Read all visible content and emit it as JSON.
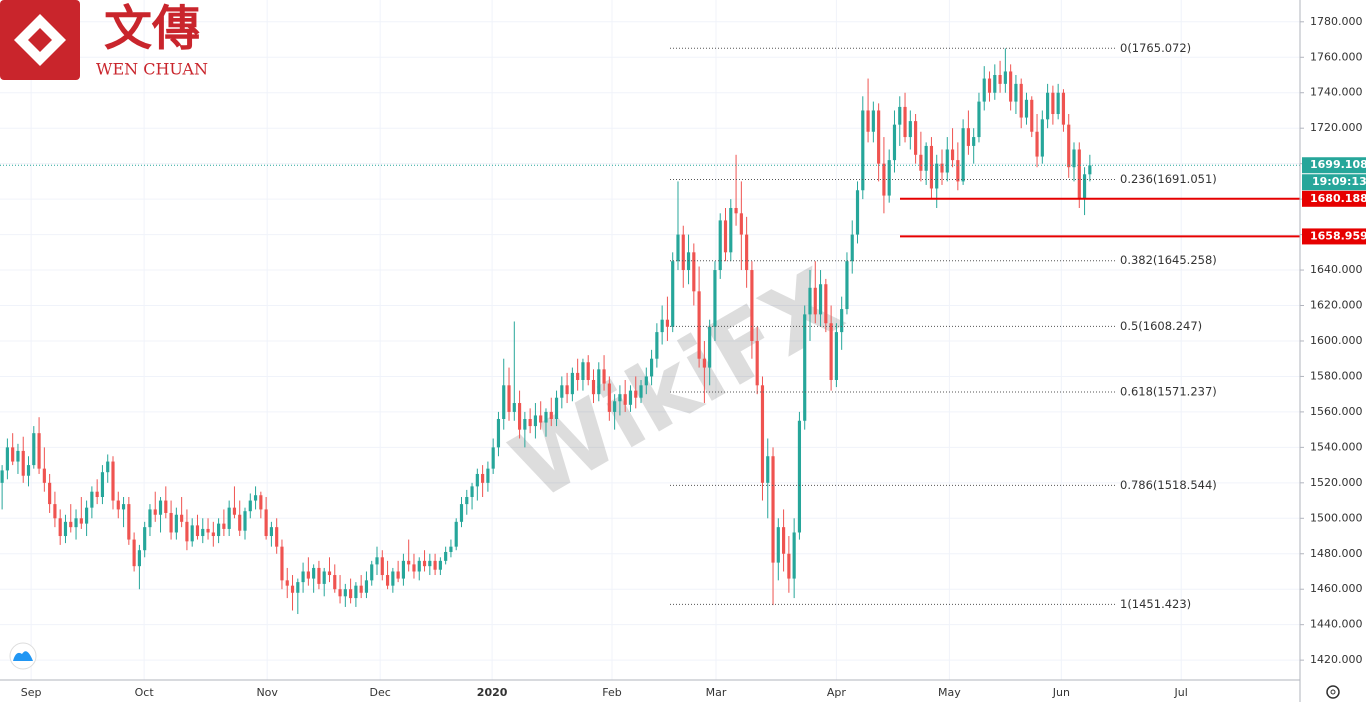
{
  "logo": {
    "name_cn": "文傳",
    "name_en": "WEN CHUAN"
  },
  "watermark": "WikiFX",
  "chart_data": {
    "type": "candlestick",
    "up_color": "#26a69a",
    "down_color": "#ef5350",
    "grid": true,
    "candles": [
      [
        1520,
        1530,
        1505,
        1527
      ],
      [
        1527,
        1545,
        1522,
        1540
      ],
      [
        1540,
        1548,
        1530,
        1532
      ],
      [
        1532,
        1542,
        1525,
        1538
      ],
      [
        1538,
        1546,
        1520,
        1524
      ],
      [
        1524,
        1535,
        1518,
        1530
      ],
      [
        1530,
        1552,
        1528,
        1548
      ],
      [
        1548,
        1557,
        1525,
        1528
      ],
      [
        1528,
        1540,
        1515,
        1520
      ],
      [
        1520,
        1525,
        1503,
        1508
      ],
      [
        1508,
        1515,
        1495,
        1500
      ],
      [
        1500,
        1505,
        1485,
        1490
      ],
      [
        1490,
        1502,
        1486,
        1498
      ],
      [
        1498,
        1508,
        1492,
        1495
      ],
      [
        1495,
        1505,
        1488,
        1500
      ],
      [
        1500,
        1512,
        1494,
        1497
      ],
      [
        1497,
        1510,
        1490,
        1506
      ],
      [
        1506,
        1518,
        1500,
        1515
      ],
      [
        1515,
        1522,
        1508,
        1512
      ],
      [
        1512,
        1530,
        1508,
        1526
      ],
      [
        1526,
        1536,
        1520,
        1532
      ],
      [
        1532,
        1535,
        1505,
        1510
      ],
      [
        1510,
        1515,
        1500,
        1505
      ],
      [
        1505,
        1512,
        1495,
        1508
      ],
      [
        1508,
        1512,
        1485,
        1488
      ],
      [
        1488,
        1492,
        1470,
        1473
      ],
      [
        1473,
        1485,
        1460,
        1482
      ],
      [
        1482,
        1498,
        1478,
        1495
      ],
      [
        1495,
        1508,
        1490,
        1505
      ],
      [
        1505,
        1515,
        1498,
        1502
      ],
      [
        1502,
        1512,
        1492,
        1510
      ],
      [
        1510,
        1518,
        1500,
        1503
      ],
      [
        1503,
        1510,
        1488,
        1492
      ],
      [
        1492,
        1506,
        1488,
        1502
      ],
      [
        1502,
        1512,
        1495,
        1498
      ],
      [
        1498,
        1505,
        1482,
        1487
      ],
      [
        1487,
        1500,
        1484,
        1496
      ],
      [
        1496,
        1502,
        1488,
        1490
      ],
      [
        1490,
        1500,
        1486,
        1494
      ],
      [
        1494,
        1500,
        1488,
        1492
      ],
      [
        1492,
        1498,
        1484,
        1490
      ],
      [
        1490,
        1500,
        1486,
        1497
      ],
      [
        1497,
        1505,
        1490,
        1494
      ],
      [
        1494,
        1510,
        1490,
        1506
      ],
      [
        1506,
        1518,
        1500,
        1502
      ],
      [
        1502,
        1510,
        1490,
        1493
      ],
      [
        1493,
        1506,
        1488,
        1504
      ],
      [
        1504,
        1514,
        1500,
        1510
      ],
      [
        1510,
        1518,
        1505,
        1513
      ],
      [
        1513,
        1515,
        1500,
        1505
      ],
      [
        1505,
        1512,
        1488,
        1490
      ],
      [
        1490,
        1498,
        1484,
        1495
      ],
      [
        1495,
        1500,
        1480,
        1484
      ],
      [
        1484,
        1488,
        1460,
        1465
      ],
      [
        1465,
        1472,
        1455,
        1462
      ],
      [
        1462,
        1468,
        1448,
        1458
      ],
      [
        1458,
        1466,
        1446,
        1464
      ],
      [
        1464,
        1475,
        1458,
        1470
      ],
      [
        1470,
        1478,
        1462,
        1466
      ],
      [
        1466,
        1474,
        1458,
        1472
      ],
      [
        1472,
        1476,
        1460,
        1463
      ],
      [
        1463,
        1472,
        1456,
        1470
      ],
      [
        1470,
        1478,
        1464,
        1468
      ],
      [
        1468,
        1474,
        1458,
        1460
      ],
      [
        1460,
        1468,
        1452,
        1456
      ],
      [
        1456,
        1463,
        1450,
        1460
      ],
      [
        1460,
        1466,
        1452,
        1455
      ],
      [
        1455,
        1464,
        1450,
        1462
      ],
      [
        1462,
        1468,
        1455,
        1458
      ],
      [
        1458,
        1470,
        1455,
        1465
      ],
      [
        1465,
        1476,
        1462,
        1474
      ],
      [
        1474,
        1484,
        1468,
        1478
      ],
      [
        1478,
        1482,
        1465,
        1468
      ],
      [
        1468,
        1476,
        1460,
        1462
      ],
      [
        1462,
        1472,
        1458,
        1470
      ],
      [
        1470,
        1476,
        1464,
        1466
      ],
      [
        1466,
        1480,
        1462,
        1476
      ],
      [
        1476,
        1488,
        1470,
        1474
      ],
      [
        1474,
        1480,
        1466,
        1470
      ],
      [
        1470,
        1478,
        1465,
        1476
      ],
      [
        1476,
        1482,
        1470,
        1473
      ],
      [
        1473,
        1480,
        1468,
        1476
      ],
      [
        1476,
        1480,
        1468,
        1471
      ],
      [
        1471,
        1478,
        1468,
        1476
      ],
      [
        1476,
        1484,
        1474,
        1481
      ],
      [
        1481,
        1488,
        1478,
        1484
      ],
      [
        1484,
        1500,
        1482,
        1498
      ],
      [
        1498,
        1512,
        1495,
        1508
      ],
      [
        1508,
        1516,
        1502,
        1512
      ],
      [
        1512,
        1520,
        1505,
        1518
      ],
      [
        1518,
        1528,
        1510,
        1525
      ],
      [
        1525,
        1530,
        1512,
        1520
      ],
      [
        1520,
        1532,
        1515,
        1528
      ],
      [
        1528,
        1545,
        1525,
        1540
      ],
      [
        1540,
        1560,
        1535,
        1556
      ],
      [
        1556,
        1590,
        1550,
        1575
      ],
      [
        1575,
        1585,
        1555,
        1560
      ],
      [
        1560,
        1611,
        1555,
        1565
      ],
      [
        1565,
        1572,
        1545,
        1550
      ],
      [
        1550,
        1560,
        1540,
        1556
      ],
      [
        1556,
        1562,
        1548,
        1552
      ],
      [
        1552,
        1565,
        1545,
        1558
      ],
      [
        1558,
        1566,
        1550,
        1554
      ],
      [
        1554,
        1562,
        1546,
        1560
      ],
      [
        1560,
        1568,
        1552,
        1556
      ],
      [
        1556,
        1572,
        1552,
        1568
      ],
      [
        1568,
        1580,
        1562,
        1575
      ],
      [
        1575,
        1582,
        1565,
        1570
      ],
      [
        1570,
        1585,
        1566,
        1582
      ],
      [
        1582,
        1590,
        1572,
        1578
      ],
      [
        1578,
        1590,
        1572,
        1588
      ],
      [
        1588,
        1592,
        1575,
        1578
      ],
      [
        1578,
        1584,
        1565,
        1570
      ],
      [
        1570,
        1588,
        1566,
        1584
      ],
      [
        1584,
        1592,
        1572,
        1576
      ],
      [
        1576,
        1580,
        1555,
        1560
      ],
      [
        1560,
        1570,
        1550,
        1566
      ],
      [
        1566,
        1575,
        1558,
        1570
      ],
      [
        1570,
        1578,
        1560,
        1564
      ],
      [
        1564,
        1575,
        1560,
        1572
      ],
      [
        1572,
        1580,
        1562,
        1568
      ],
      [
        1568,
        1578,
        1565,
        1575
      ],
      [
        1575,
        1585,
        1570,
        1580
      ],
      [
        1580,
        1595,
        1575,
        1590
      ],
      [
        1590,
        1610,
        1585,
        1605
      ],
      [
        1605,
        1620,
        1598,
        1612
      ],
      [
        1612,
        1625,
        1600,
        1608
      ],
      [
        1608,
        1650,
        1605,
        1645
      ],
      [
        1645,
        1690,
        1640,
        1660
      ],
      [
        1660,
        1665,
        1630,
        1640
      ],
      [
        1640,
        1660,
        1632,
        1650
      ],
      [
        1650,
        1655,
        1620,
        1628
      ],
      [
        1628,
        1642,
        1585,
        1590
      ],
      [
        1590,
        1600,
        1565,
        1585
      ],
      [
        1585,
        1612,
        1575,
        1608
      ],
      [
        1608,
        1645,
        1600,
        1640
      ],
      [
        1640,
        1672,
        1635,
        1668
      ],
      [
        1668,
        1675,
        1645,
        1650
      ],
      [
        1650,
        1680,
        1645,
        1675
      ],
      [
        1675,
        1705,
        1665,
        1672
      ],
      [
        1672,
        1690,
        1640,
        1660
      ],
      [
        1660,
        1670,
        1630,
        1640
      ],
      [
        1640,
        1645,
        1590,
        1600
      ],
      [
        1600,
        1608,
        1570,
        1575
      ],
      [
        1575,
        1580,
        1510,
        1520
      ],
      [
        1520,
        1545,
        1500,
        1535
      ],
      [
        1535,
        1540,
        1451,
        1475
      ],
      [
        1475,
        1500,
        1465,
        1495
      ],
      [
        1495,
        1505,
        1470,
        1480
      ],
      [
        1480,
        1490,
        1458,
        1466
      ],
      [
        1466,
        1500,
        1455,
        1492
      ],
      [
        1492,
        1560,
        1488,
        1555
      ],
      [
        1555,
        1620,
        1550,
        1615
      ],
      [
        1615,
        1640,
        1600,
        1630
      ],
      [
        1630,
        1645,
        1610,
        1615
      ],
      [
        1615,
        1640,
        1608,
        1632
      ],
      [
        1632,
        1635,
        1605,
        1610
      ],
      [
        1610,
        1620,
        1572,
        1578
      ],
      [
        1578,
        1610,
        1574,
        1605
      ],
      [
        1605,
        1625,
        1595,
        1618
      ],
      [
        1618,
        1650,
        1615,
        1645
      ],
      [
        1645,
        1668,
        1638,
        1660
      ],
      [
        1660,
        1690,
        1655,
        1685
      ],
      [
        1685,
        1738,
        1680,
        1730
      ],
      [
        1730,
        1748,
        1712,
        1718
      ],
      [
        1718,
        1735,
        1712,
        1730
      ],
      [
        1730,
        1734,
        1690,
        1700
      ],
      [
        1700,
        1715,
        1672,
        1682
      ],
      [
        1682,
        1708,
        1678,
        1702
      ],
      [
        1702,
        1730,
        1695,
        1722
      ],
      [
        1722,
        1738,
        1710,
        1732
      ],
      [
        1732,
        1740,
        1712,
        1715
      ],
      [
        1715,
        1730,
        1708,
        1724
      ],
      [
        1724,
        1728,
        1700,
        1705
      ],
      [
        1705,
        1718,
        1690,
        1696
      ],
      [
        1696,
        1712,
        1688,
        1710
      ],
      [
        1710,
        1715,
        1680,
        1686
      ],
      [
        1686,
        1705,
        1675,
        1700
      ],
      [
        1700,
        1708,
        1688,
        1695
      ],
      [
        1695,
        1715,
        1690,
        1708
      ],
      [
        1708,
        1720,
        1698,
        1702
      ],
      [
        1702,
        1712,
        1685,
        1690
      ],
      [
        1690,
        1725,
        1688,
        1720
      ],
      [
        1720,
        1730,
        1705,
        1710
      ],
      [
        1710,
        1720,
        1700,
        1715
      ],
      [
        1715,
        1740,
        1712,
        1735
      ],
      [
        1735,
        1755,
        1730,
        1748
      ],
      [
        1748,
        1752,
        1735,
        1740
      ],
      [
        1740,
        1756,
        1736,
        1750
      ],
      [
        1750,
        1758,
        1740,
        1745
      ],
      [
        1745,
        1765,
        1740,
        1752
      ],
      [
        1752,
        1756,
        1730,
        1735
      ],
      [
        1735,
        1750,
        1728,
        1745
      ],
      [
        1745,
        1748,
        1720,
        1726
      ],
      [
        1726,
        1740,
        1722,
        1736
      ],
      [
        1736,
        1738,
        1715,
        1718
      ],
      [
        1718,
        1728,
        1698,
        1704
      ],
      [
        1704,
        1730,
        1700,
        1725
      ],
      [
        1725,
        1745,
        1720,
        1740
      ],
      [
        1740,
        1744,
        1722,
        1728
      ],
      [
        1728,
        1745,
        1725,
        1740
      ],
      [
        1740,
        1742,
        1718,
        1722
      ],
      [
        1722,
        1728,
        1692,
        1698
      ],
      [
        1698,
        1712,
        1690,
        1708
      ],
      [
        1708,
        1712,
        1675,
        1680
      ],
      [
        1680,
        1698,
        1671,
        1694
      ],
      [
        1694,
        1705,
        1690,
        1699
      ]
    ],
    "xlim": [
      -0.4,
      245.8
    ],
    "xticks": [
      {
        "value": 5.5,
        "label": "Sep"
      },
      {
        "value": 26.9,
        "label": "Oct"
      },
      {
        "value": 50.2,
        "label": "Nov"
      },
      {
        "value": 71.6,
        "label": "Dec"
      },
      {
        "value": 92.8,
        "label": "2020"
      },
      {
        "value": 115.5,
        "label": "Feb"
      },
      {
        "value": 135.2,
        "label": "Mar"
      },
      {
        "value": 158,
        "label": "Apr"
      },
      {
        "value": 179.4,
        "label": "May"
      },
      {
        "value": 200.6,
        "label": "Jun"
      },
      {
        "value": 223.3,
        "label": "Jul"
      }
    ],
    "ylim": [
      1408.8,
      1792.3
    ],
    "yticks": [
      {
        "value": 1420,
        "label": "1420.000"
      },
      {
        "value": 1440,
        "label": "1440.000"
      },
      {
        "value": 1460,
        "label": "1460.000"
      },
      {
        "value": 1480,
        "label": "1480.000"
      },
      {
        "value": 1500,
        "label": "1500.000"
      },
      {
        "value": 1520,
        "label": "1520.000"
      },
      {
        "value": 1540,
        "label": "1540.000"
      },
      {
        "value": 1560,
        "label": "1560.000"
      },
      {
        "value": 1580,
        "label": "1580.000"
      },
      {
        "value": 1600,
        "label": "1600.000"
      },
      {
        "value": 1620,
        "label": "1620.000"
      },
      {
        "value": 1640,
        "label": "1640.000"
      },
      {
        "value": 1660,
        "label": "1660.000"
      },
      {
        "value": 1680,
        "label": "1680.000"
      },
      {
        "value": 1700,
        "label": "1700.000"
      },
      {
        "value": 1720,
        "label": "1720.000"
      },
      {
        "value": 1740,
        "label": "1740.000"
      },
      {
        "value": 1760,
        "label": "1760.000"
      },
      {
        "value": 1780,
        "label": "1780.000"
      }
    ],
    "fib_levels": [
      {
        "value": 1765.072,
        "label": "0(1765.072)"
      },
      {
        "value": 1691.051,
        "label": "0.236(1691.051)"
      },
      {
        "value": 1645.258,
        "label": "0.382(1645.258)"
      },
      {
        "value": 1608.247,
        "label": "0.5(1608.247)"
      },
      {
        "value": 1571.237,
        "label": "0.618(1571.237)"
      },
      {
        "value": 1518.544,
        "label": "0.786(1518.544)"
      },
      {
        "value": 1451.423,
        "label": "1(1451.423)"
      }
    ],
    "levels": [
      {
        "price": 1680.188,
        "color": "#e60000"
      },
      {
        "price": 1658.959,
        "color": "#e60000"
      }
    ],
    "current_price": {
      "price": 1699.108,
      "color": "#26a69a",
      "countdown": "19:09:13"
    }
  }
}
